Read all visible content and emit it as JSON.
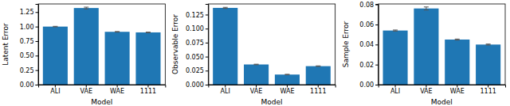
{
  "chart_data": [
    {
      "type": "bar",
      "xlabel": "Model",
      "ylabel": "Latent Error",
      "categories": [
        "ALI",
        "VAE",
        "WAE",
        "1111"
      ],
      "values": [
        1.0,
        1.32,
        0.91,
        0.9
      ],
      "errors": [
        0.005,
        0.015,
        0.005,
        0.005
      ],
      "color": "#1f77b4",
      "ylim": [
        0,
        1.39
      ],
      "yticks": [
        {
          "value": 0,
          "label": "0.00"
        },
        0.25,
        {
          "value": 0.5,
          "label": "0.50"
        },
        0.75,
        {
          "value": 1,
          "label": "1.00"
        },
        1.25
      ]
    },
    {
      "type": "bar",
      "xlabel": "Model",
      "ylabel": "Observable Error",
      "categories": [
        "ALI",
        "VAE",
        "WAE",
        "1111"
      ],
      "values": [
        0.137,
        0.036,
        0.018,
        0.033
      ],
      "errors": [
        0.001,
        0.0005,
        0.0005,
        0.0005
      ],
      "color": "#1f77b4",
      "ylim": [
        0,
        0.144
      ],
      "yticks": [
        {
          "value": 0,
          "label": "0.000"
        },
        0.025,
        {
          "value": 0.05,
          "label": "0.050"
        },
        0.075,
        {
          "value": 0.1,
          "label": "0.100"
        },
        0.125
      ]
    },
    {
      "type": "bar",
      "xlabel": "Model",
      "ylabel": "Sample Error",
      "categories": [
        "ALI",
        "VAE",
        "WAE",
        "1111"
      ],
      "values": [
        0.054,
        0.076,
        0.045,
        0.04
      ],
      "errors": [
        0.0005,
        0.0015,
        0.0005,
        0.0005
      ],
      "color": "#1f77b4",
      "ylim": [
        0,
        0.0805
      ],
      "yticks": [
        {
          "value": 0,
          "label": "0.00"
        },
        0.02,
        0.04,
        0.06,
        0.08
      ]
    }
  ]
}
